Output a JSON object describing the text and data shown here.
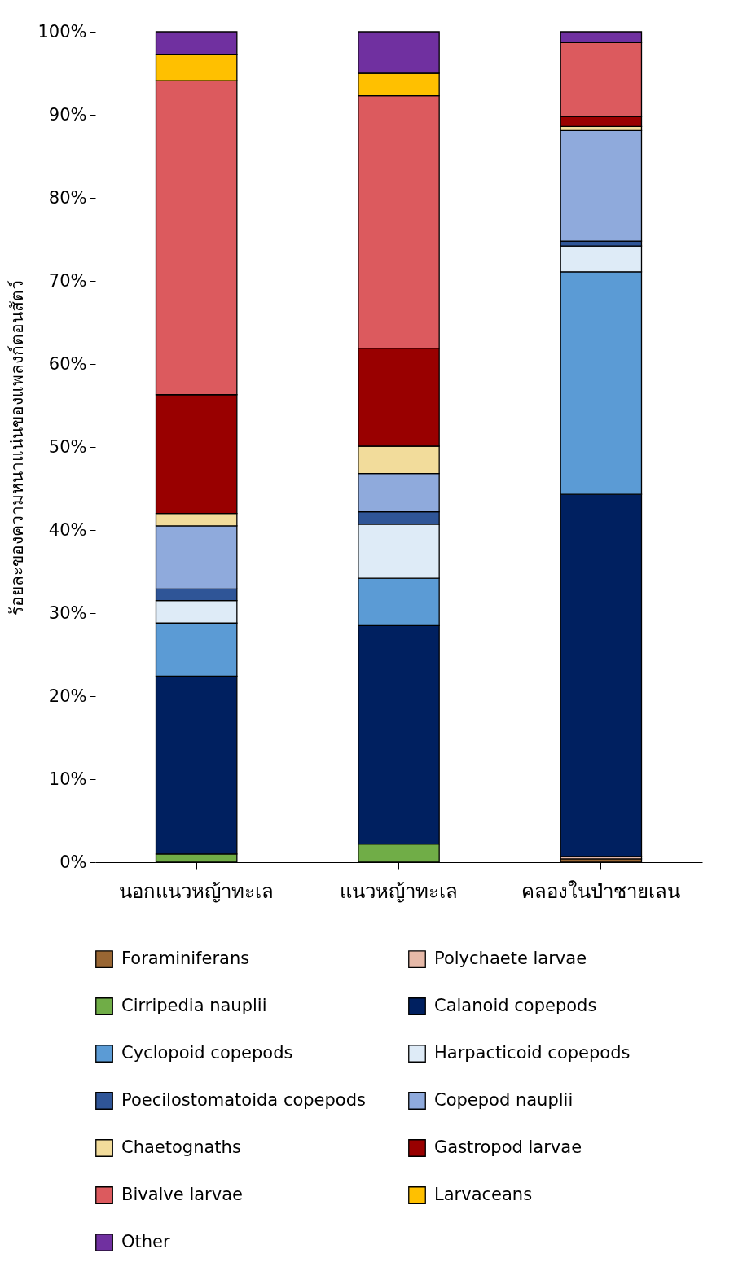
{
  "chart_data": {
    "type": "bar",
    "stacked": true,
    "ylabel": "ร้อยละของความหนาแน่นของแพลงก์ตอนสัตว์",
    "categories": [
      "นอกแนวหญ้าทะเล",
      "แนวหญ้าทะเล",
      "คลองในป่าชายเลน"
    ],
    "series": [
      {
        "name": "Foraminiferans",
        "color": "#996633",
        "values": [
          0,
          0,
          0.4
        ]
      },
      {
        "name": "Polychaete larvae",
        "color": "#E6B9A8",
        "values": [
          0,
          0,
          0.3
        ]
      },
      {
        "name": "Cirripedia nauplii",
        "color": "#70AD47",
        "values": [
          1.0,
          2.2,
          0
        ]
      },
      {
        "name": "Calanoid copepods",
        "color": "#002060",
        "values": [
          21.4,
          26.3,
          43.6
        ]
      },
      {
        "name": "Cyclopoid copepods",
        "color": "#5B9BD5",
        "values": [
          6.4,
          5.7,
          26.8
        ]
      },
      {
        "name": "Harpacticoid copepods",
        "color": "#DEEBF7",
        "values": [
          2.7,
          6.5,
          3.1
        ]
      },
      {
        "name": "Poecilostomatoida copepods",
        "color": "#2F5597",
        "values": [
          1.4,
          1.5,
          0.6
        ]
      },
      {
        "name": "Copepod nauplii",
        "color": "#8FAADC",
        "values": [
          7.6,
          4.6,
          13.3
        ]
      },
      {
        "name": "Chaetognaths",
        "color": "#F2DC9B",
        "values": [
          1.5,
          3.3,
          0.5
        ]
      },
      {
        "name": "Gastropod larvae",
        "color": "#990000",
        "values": [
          14.3,
          11.8,
          1.2
        ]
      },
      {
        "name": "Bivalve larvae",
        "color": "#DC5A5E",
        "values": [
          37.8,
          30.4,
          8.9
        ]
      },
      {
        "name": "Larvaceans",
        "color": "#FFC000",
        "values": [
          3.2,
          2.7,
          0
        ]
      },
      {
        "name": "Other",
        "color": "#7030A0",
        "values": [
          2.7,
          5.0,
          1.3
        ]
      }
    ],
    "ylim": [
      0,
      100
    ],
    "yticks": [
      {
        "value": 0,
        "label": "0%"
      },
      {
        "value": 10,
        "label": "10%"
      },
      {
        "value": 20,
        "label": "20%"
      },
      {
        "value": 30,
        "label": "30%"
      },
      {
        "value": 40,
        "label": "40%"
      },
      {
        "value": 50,
        "label": "50%"
      },
      {
        "value": 60,
        "label": "60%"
      },
      {
        "value": 70,
        "label": "70%"
      },
      {
        "value": 80,
        "label": "80%"
      },
      {
        "value": 90,
        "label": "90%"
      },
      {
        "value": 100,
        "label": "100%"
      }
    ],
    "grid": false,
    "legend": "bottom"
  }
}
